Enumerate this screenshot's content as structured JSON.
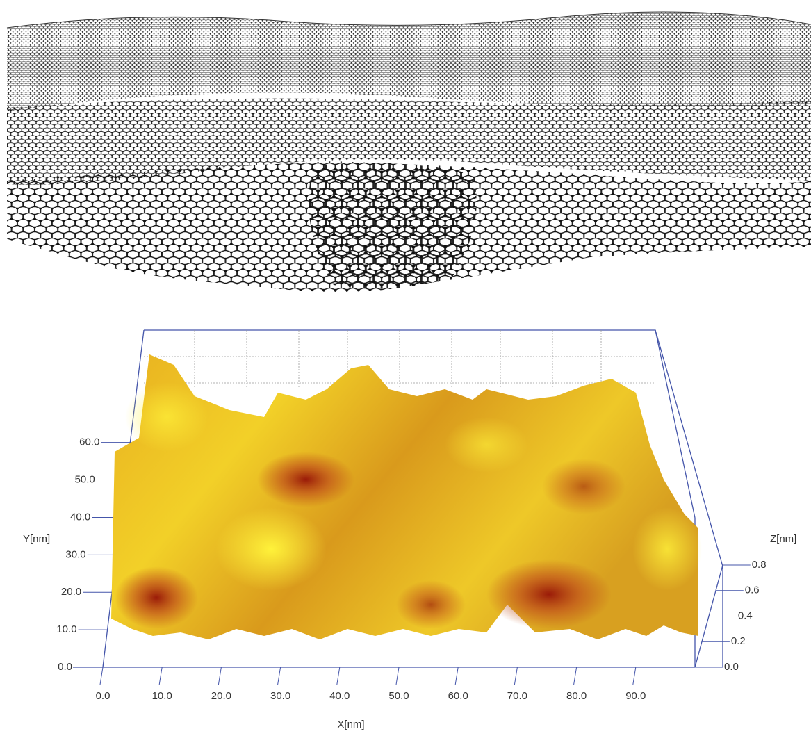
{
  "chart_data": {
    "type": "surface3d",
    "xlabel": "X[nm]",
    "ylabel": "Y[nm]",
    "zlabel": "Z[nm]",
    "xlim": [
      0,
      100
    ],
    "ylim": [
      0,
      90
    ],
    "zlim": [
      0,
      0.8
    ],
    "xticks": [
      {
        "value": 0,
        "label": "0.0"
      },
      {
        "value": 10,
        "label": "10.0"
      },
      {
        "value": 20,
        "label": "20.0"
      },
      {
        "value": 30,
        "label": "30.0"
      },
      {
        "value": 40,
        "label": "40.0"
      },
      {
        "value": 50,
        "label": "50.0"
      },
      {
        "value": 60,
        "label": "60.0"
      },
      {
        "value": 70,
        "label": "70.0"
      },
      {
        "value": 80,
        "label": "80.0"
      },
      {
        "value": 90,
        "label": "90.0"
      }
    ],
    "yticks": [
      {
        "value": 0,
        "label": "0.0"
      },
      {
        "value": 10,
        "label": "10.0"
      },
      {
        "value": 20,
        "label": "20.0"
      },
      {
        "value": 30,
        "label": "30.0"
      },
      {
        "value": 40,
        "label": "40.0"
      },
      {
        "value": 50,
        "label": "50.0"
      },
      {
        "value": 60,
        "label": "60.0"
      }
    ],
    "zticks": [
      {
        "value": 0,
        "label": "0.0"
      },
      {
        "value": 0.2,
        "label": "0.2"
      },
      {
        "value": 0.4,
        "label": "0.4"
      },
      {
        "value": 0.6,
        "label": "0.6"
      },
      {
        "value": 0.8,
        "label": "0.8"
      }
    ],
    "axis_color": "#4455aa"
  }
}
